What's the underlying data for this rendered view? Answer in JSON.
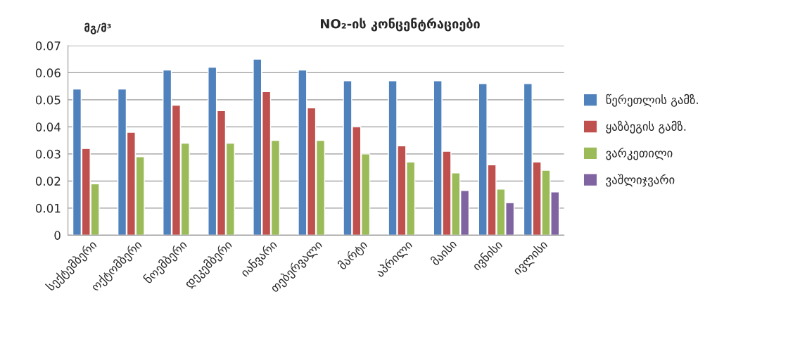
{
  "chart_data": {
    "type": "bar",
    "title": "NO₂-ის კონცენტრაციები",
    "ylabel": "მგ/მ³",
    "categories": [
      "სექტემბერი",
      "ოქტომბერი",
      "ნოემბერი",
      "დეკემბერი",
      "იანვარი",
      "თებერვალი",
      "მარტი",
      "აპრილი",
      "მაისი",
      "ივნისი",
      "ივლისი"
    ],
    "series": [
      {
        "name": "წერეთლის გამზ.",
        "color": "#4f81bd",
        "values": [
          0.054,
          0.054,
          0.061,
          0.062,
          0.065,
          0.061,
          0.057,
          0.057,
          0.057,
          0.056,
          0.056
        ]
      },
      {
        "name": "ყაზბეგის გამზ.",
        "color": "#c0504d",
        "values": [
          0.032,
          0.038,
          0.048,
          0.046,
          0.053,
          0.047,
          0.04,
          0.033,
          0.031,
          0.026,
          0.027
        ]
      },
      {
        "name": "ვარკეთილი",
        "color": "#9bbb59",
        "values": [
          0.019,
          0.029,
          0.034,
          0.034,
          0.035,
          0.035,
          0.03,
          0.027,
          0.023,
          0.017,
          0.024
        ]
      },
      {
        "name": "ვაშლიჯვარი",
        "color": "#8064a2",
        "values": [
          null,
          null,
          null,
          null,
          null,
          null,
          null,
          null,
          0.0165,
          0.012,
          0.016
        ]
      }
    ],
    "ylim": [
      0,
      0.07
    ],
    "yticks": [
      0,
      0.01,
      0.02,
      0.03,
      0.04,
      0.05,
      0.06,
      0.07
    ],
    "grid": "y",
    "legend": "right"
  }
}
